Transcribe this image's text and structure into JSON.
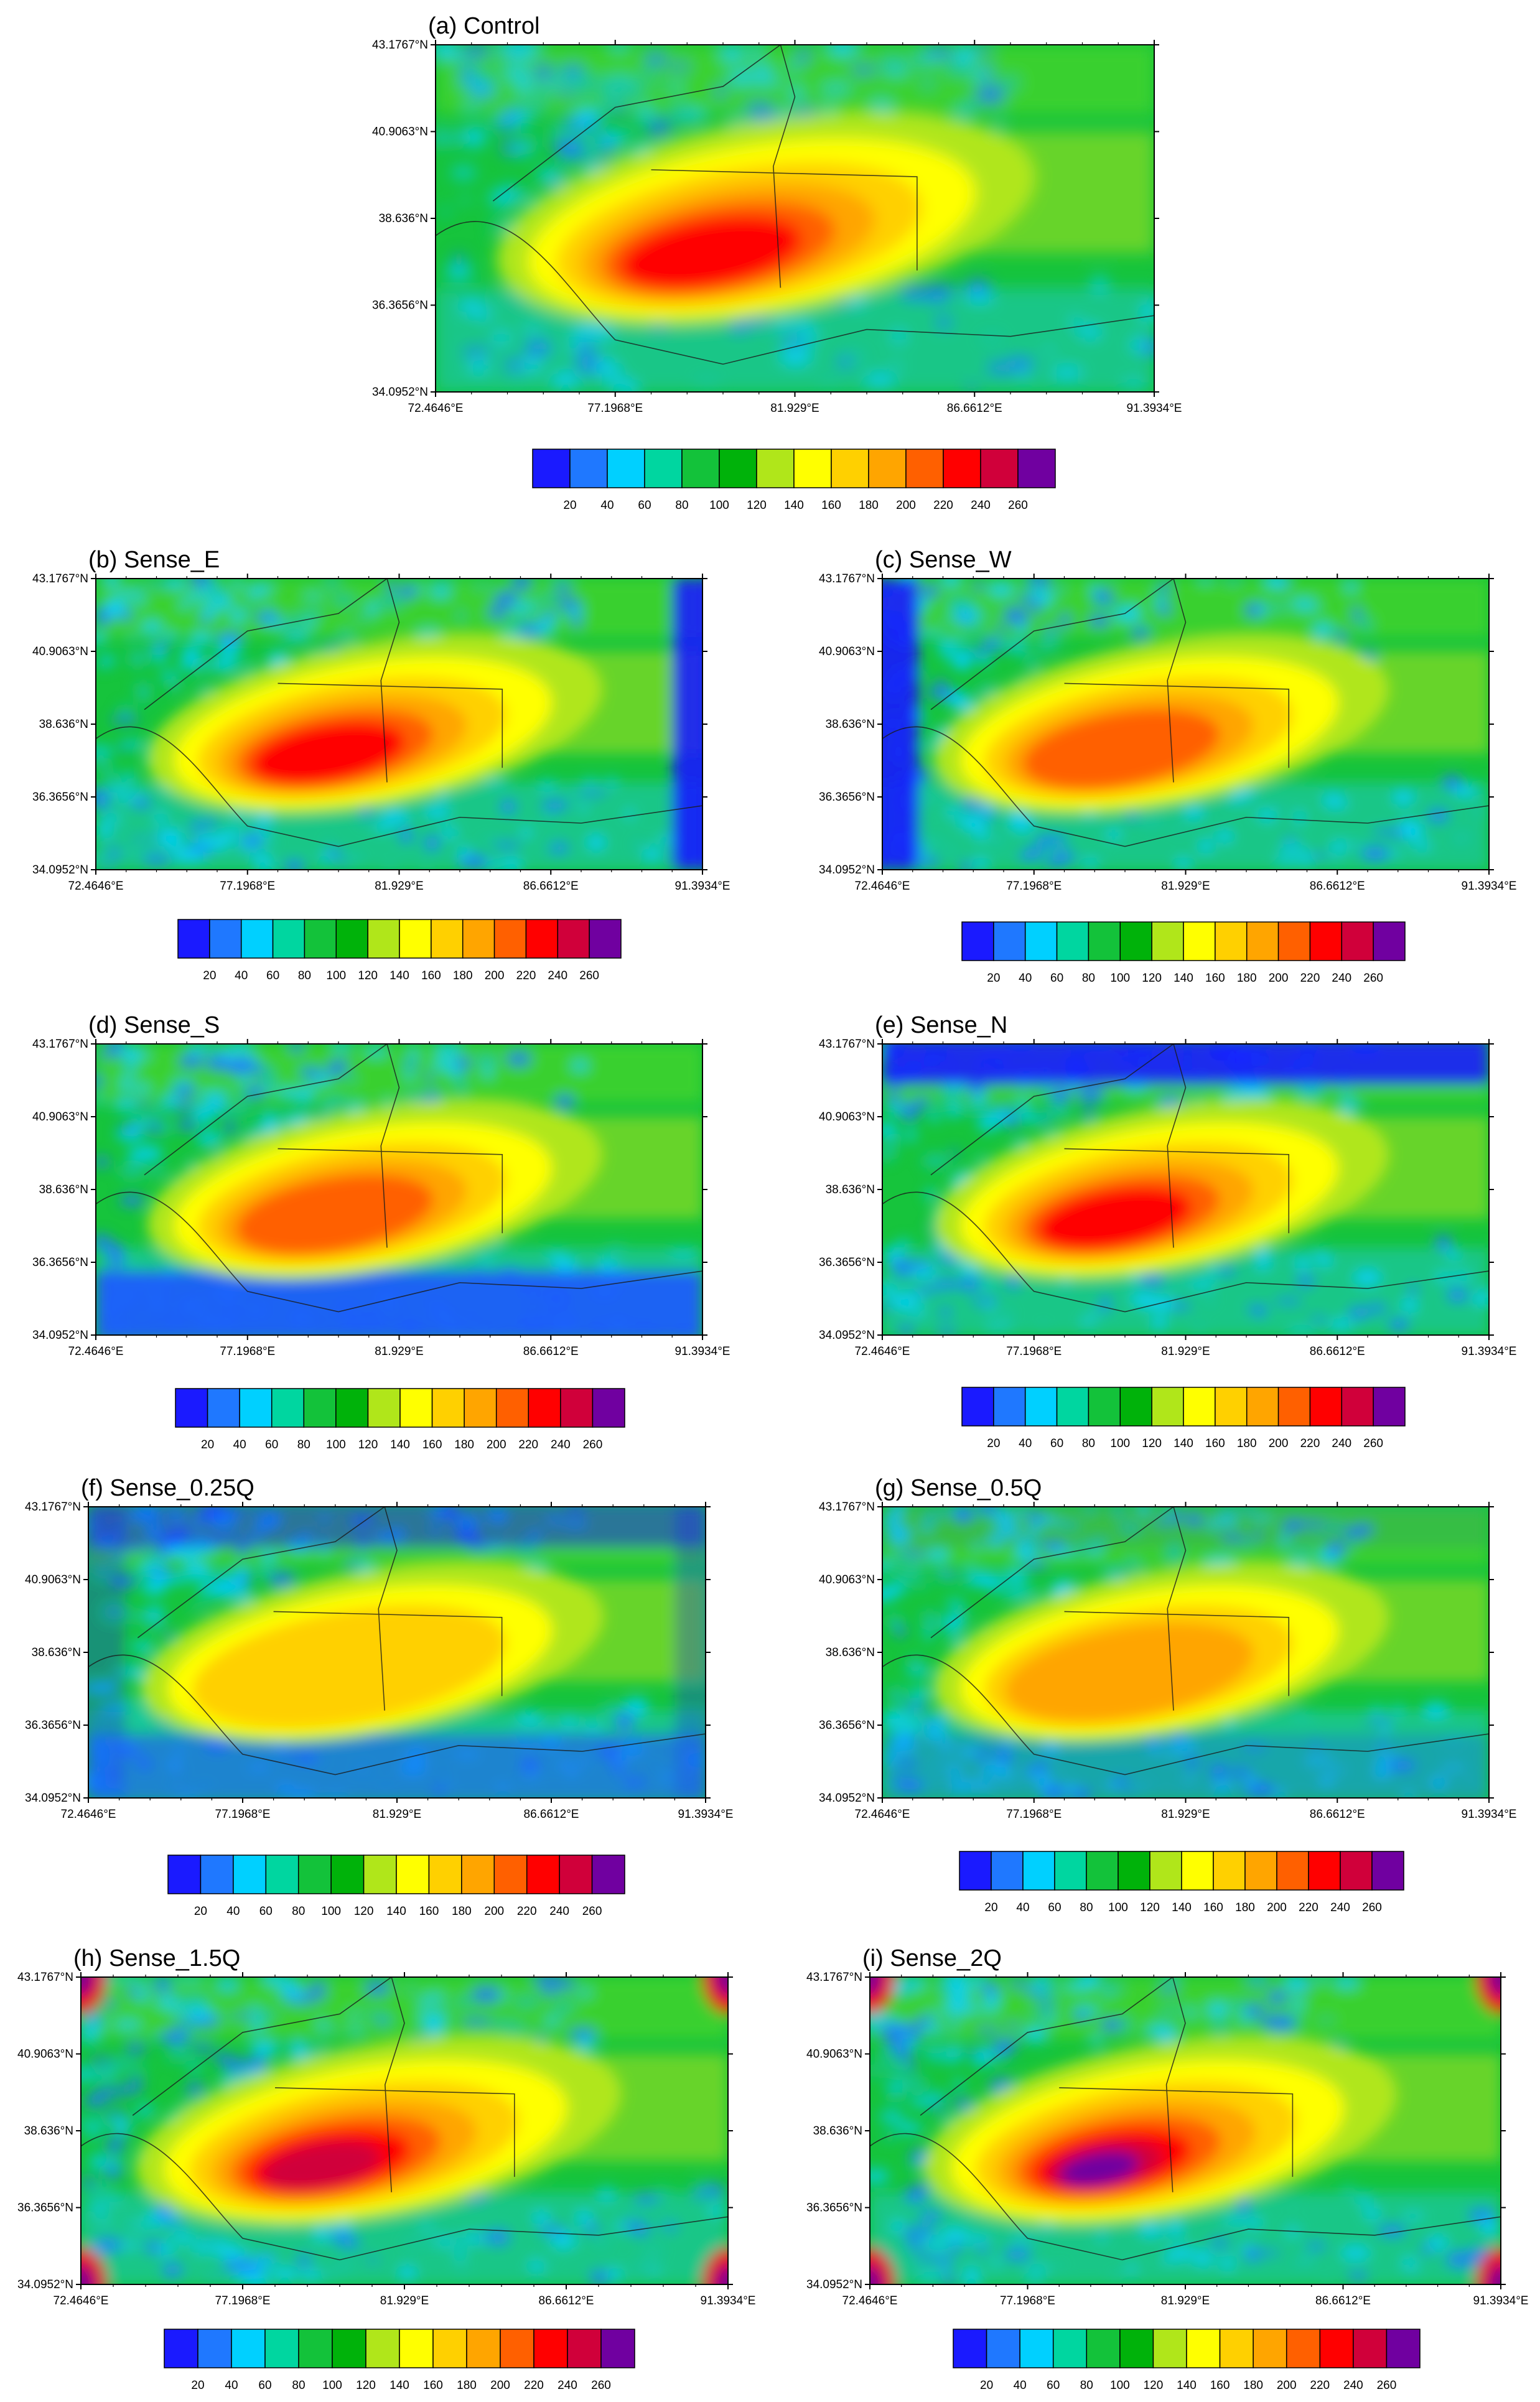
{
  "figure": {
    "latitude_ticks": [
      "43.1767°N",
      "40.9063°N",
      "38.636°N",
      "36.3656°N",
      "34.0952°N"
    ],
    "longitude_ticks": [
      "72.4646°E",
      "77.1968°E",
      "81.929°E",
      "86.6612°E",
      "91.3934°E"
    ],
    "colorbar": {
      "labels": [
        "20",
        "40",
        "60",
        "80",
        "100",
        "120",
        "140",
        "160",
        "180",
        "200",
        "220",
        "240",
        "260"
      ],
      "colors": [
        "#1a1aff",
        "#1f78ff",
        "#00d0ff",
        "#00d6a0",
        "#13c23a",
        "#00b20a",
        "#b0e61a",
        "#ffff00",
        "#ffd000",
        "#ffa500",
        "#ff6000",
        "#ff0000",
        "#d0003a",
        "#7000a0"
      ]
    }
  },
  "panels": [
    {
      "id": "a",
      "title": "(a)  Control",
      "hot": 0.8,
      "blue_west": 0.0,
      "blue_east": 0.0,
      "blue_south": 0.0,
      "blue_north": 0.0
    },
    {
      "id": "b",
      "title": "(b)  Sense_E",
      "hot": 0.78,
      "blue_west": 0.0,
      "blue_east": 0.9,
      "blue_south": 0.0,
      "blue_north": 0.0
    },
    {
      "id": "c",
      "title": "(c)  Sense_W",
      "hot": 0.62,
      "blue_west": 0.9,
      "blue_east": 0.0,
      "blue_south": 0.0,
      "blue_north": 0.0
    },
    {
      "id": "d",
      "title": "(d)  Sense_S",
      "hot": 0.6,
      "blue_west": 0.0,
      "blue_east": 0.0,
      "blue_south": 0.9,
      "blue_north": 0.0
    },
    {
      "id": "e",
      "title": "(e)  Sense_N",
      "hot": 0.72,
      "blue_west": 0.0,
      "blue_east": 0.0,
      "blue_south": 0.0,
      "blue_north": 0.9
    },
    {
      "id": "f",
      "title": "(f)  Sense_0.25Q",
      "hot": 0.4,
      "blue_west": 0.3,
      "blue_east": 0.3,
      "blue_south": 0.6,
      "blue_north": 0.5
    },
    {
      "id": "g",
      "title": "(g)  Sense_0.5Q",
      "hot": 0.52,
      "blue_west": 0.0,
      "blue_east": 0.0,
      "blue_south": 0.3,
      "blue_north": 0.1
    },
    {
      "id": "h",
      "title": "(h)  Sense_1.5Q",
      "hot": 0.92,
      "blue_west": 0.0,
      "blue_east": 0.0,
      "blue_south": 0.0,
      "blue_north": 0.0
    },
    {
      "id": "i",
      "title": "(i)  Sense_2Q",
      "hot": 1.0,
      "blue_west": 0.0,
      "blue_east": 0.0,
      "blue_south": 0.0,
      "blue_north": 0.0
    }
  ]
}
